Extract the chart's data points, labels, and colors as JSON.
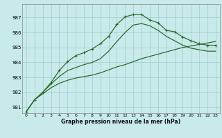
{
  "xlabel": "Graphe pression niveau de la mer (hPa)",
  "bg_color": "#c8eaea",
  "grid_color": "#a0cccc",
  "line_color": "#2d6a2d",
  "xlim": [
    -0.5,
    23.5
  ],
  "ylim": [
    980.6,
    987.9
  ],
  "yticks": [
    981,
    982,
    983,
    984,
    985,
    986,
    987
  ],
  "xticks": [
    0,
    1,
    2,
    3,
    4,
    5,
    6,
    7,
    8,
    9,
    10,
    11,
    12,
    13,
    14,
    15,
    16,
    17,
    18,
    19,
    20,
    21,
    22,
    23
  ],
  "line1_x": [
    0,
    1,
    2,
    3,
    4,
    5,
    6,
    7,
    8,
    9,
    10,
    11,
    12,
    13,
    14,
    15,
    16,
    17,
    18,
    19,
    20,
    21,
    22,
    23
  ],
  "line1_y": [
    980.7,
    981.5,
    982.0,
    982.65,
    983.45,
    984.05,
    984.45,
    984.65,
    984.9,
    985.25,
    985.75,
    986.55,
    987.05,
    987.2,
    987.2,
    986.85,
    986.65,
    986.15,
    986.05,
    985.7,
    985.45,
    985.25,
    985.15,
    985.15
  ],
  "line2_x": [
    0,
    1,
    2,
    3,
    4,
    5,
    6,
    7,
    8,
    9,
    10,
    11,
    12,
    13,
    14,
    15,
    16,
    17,
    18,
    19,
    20,
    21,
    22,
    23
  ],
  "line2_y": [
    980.7,
    981.5,
    982.0,
    982.55,
    983.05,
    983.45,
    983.65,
    983.85,
    984.0,
    984.25,
    984.75,
    985.4,
    986.0,
    986.5,
    986.6,
    986.45,
    986.15,
    985.75,
    985.45,
    985.15,
    984.95,
    984.85,
    984.75,
    984.75
  ],
  "line3_x": [
    0,
    1,
    2,
    3,
    4,
    5,
    6,
    7,
    8,
    9,
    10,
    11,
    12,
    13,
    14,
    15,
    16,
    17,
    18,
    19,
    20,
    21,
    22,
    23
  ],
  "line3_y": [
    980.7,
    981.5,
    981.9,
    982.3,
    982.6,
    982.8,
    982.95,
    983.05,
    983.15,
    983.3,
    983.5,
    983.7,
    983.85,
    984.05,
    984.25,
    984.4,
    984.55,
    984.7,
    984.85,
    985.0,
    985.1,
    985.2,
    985.3,
    985.4
  ]
}
